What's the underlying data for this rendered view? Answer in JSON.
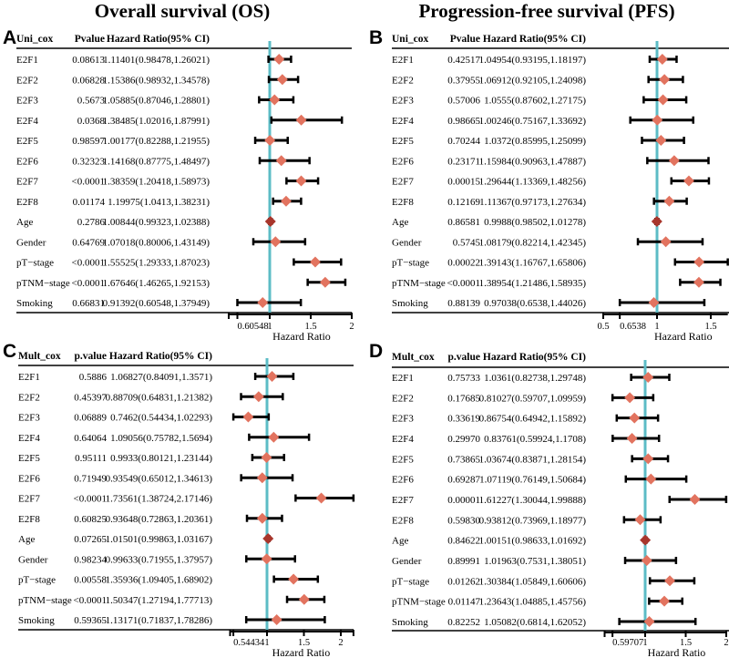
{
  "titles": [
    "Overall survival (OS)",
    "Progression-free survival (PFS)"
  ],
  "colors": {
    "diamond": "#e2735f",
    "diamond_dark": "#a8362c",
    "refline": "#5cbcc6",
    "bar": "#000000"
  },
  "chart_data": [
    {
      "type": "forest",
      "letter": "A",
      "columns": [
        "Uni_cox",
        "Pvalue",
        "Hazard Ratio(95% CI)"
      ],
      "xlabel": "Hazard Ratio",
      "xlim": [
        0.5,
        2.0
      ],
      "ref": 1,
      "ticks": [
        {
          "value": 0.5,
          "label": ""
        },
        {
          "value": 0.60548,
          "label": "0.60548"
        },
        {
          "value": 1,
          "label": "1"
        },
        {
          "value": 1.5,
          "label": "1.5"
        },
        {
          "value": 2,
          "label": "2"
        }
      ],
      "rows": [
        {
          "name": "E2F1",
          "p": "0.08613",
          "text": "1.11401(0.98478,1.26021)",
          "hr": 1.11401,
          "lo": 0.98478,
          "hi": 1.26021
        },
        {
          "name": "E2F2",
          "p": "0.06828",
          "text": "1.15386(0.98932,1.34578)",
          "hr": 1.15386,
          "lo": 0.98932,
          "hi": 1.34578
        },
        {
          "name": "E2F3",
          "p": "0.5673",
          "text": "1.05885(0.87046,1.28801)",
          "hr": 1.05885,
          "lo": 0.87046,
          "hi": 1.28801
        },
        {
          "name": "E2F4",
          "p": "0.0368",
          "text": "1.38485(1.02016,1.87991)",
          "hr": 1.38485,
          "lo": 1.02016,
          "hi": 1.87991
        },
        {
          "name": "E2F5",
          "p": "0.98597",
          "text": "1.00177(0.82288,1.21955)",
          "hr": 1.00177,
          "lo": 0.82288,
          "hi": 1.21955
        },
        {
          "name": "E2F6",
          "p": "0.32323",
          "text": "1.14168(0.87775,1.48497)",
          "hr": 1.14168,
          "lo": 0.87775,
          "hi": 1.48497
        },
        {
          "name": "E2F7",
          "p": "<0.0001",
          "text": "1.38359(1.20418,1.58973)",
          "hr": 1.38359,
          "lo": 1.20418,
          "hi": 1.58973
        },
        {
          "name": "E2F8",
          "p": "0.01174",
          "text": "1.19975(1.0413,1.38231)",
          "hr": 1.19975,
          "lo": 1.0413,
          "hi": 1.38231
        },
        {
          "name": "Age",
          "p": "0.2786",
          "text": "1.00844(0.99323,1.02388)",
          "hr": 1.00844,
          "lo": 0.99323,
          "hi": 1.02388
        },
        {
          "name": "Gender",
          "p": "0.64769",
          "text": "1.07018(0.80006,1.43149)",
          "hr": 1.07018,
          "lo": 0.80006,
          "hi": 1.43149
        },
        {
          "name": "pT−stage",
          "p": "<0.0001",
          "text": "1.55525(1.29333,1.87023)",
          "hr": 1.55525,
          "lo": 1.29333,
          "hi": 1.87023
        },
        {
          "name": "pTNM−stage",
          "p": "<0.0001",
          "text": "1.67646(1.46265,1.92153)",
          "hr": 1.67646,
          "lo": 1.46265,
          "hi": 1.92153
        },
        {
          "name": "Smoking",
          "p": "0.66831",
          "text": "0.91392(0.60548,1.37949)",
          "hr": 0.91392,
          "lo": 0.60548,
          "hi": 1.37949
        }
      ]
    },
    {
      "type": "forest",
      "letter": "B",
      "columns": [
        "Uni_cox",
        "Pvalue",
        "Hazard Ratio(95% CI)"
      ],
      "xlabel": "Hazard Ratio",
      "xlim": [
        0.5,
        1.65806
      ],
      "ref": 1,
      "ticks": [
        {
          "value": 0.5,
          "label": "0.5"
        },
        {
          "value": 0.6538,
          "label": "0.6538"
        },
        {
          "value": 1,
          "label": "1"
        },
        {
          "value": 1.5,
          "label": "1.5"
        }
      ],
      "rows": [
        {
          "name": "E2F1",
          "p": "0.42517",
          "text": "1.04954(0.93195,1.18197)",
          "hr": 1.04954,
          "lo": 0.93195,
          "hi": 1.18197
        },
        {
          "name": "E2F2",
          "p": "0.37955",
          "text": "1.06912(0.92105,1.24098)",
          "hr": 1.06912,
          "lo": 0.92105,
          "hi": 1.24098
        },
        {
          "name": "E2F3",
          "p": "0.57006",
          "text": "1.0555(0.87602,1.27175)",
          "hr": 1.0555,
          "lo": 0.87602,
          "hi": 1.27175
        },
        {
          "name": "E2F4",
          "p": "0.98665",
          "text": "1.00246(0.75167,1.33692)",
          "hr": 1.00246,
          "lo": 0.75167,
          "hi": 1.33692
        },
        {
          "name": "E2F5",
          "p": "0.70244",
          "text": "1.0372(0.85995,1.25099)",
          "hr": 1.0372,
          "lo": 0.85995,
          "hi": 1.25099
        },
        {
          "name": "E2F6",
          "p": "0.23171",
          "text": "1.15984(0.90963,1.47887)",
          "hr": 1.15984,
          "lo": 0.90963,
          "hi": 1.47887
        },
        {
          "name": "E2F7",
          "p": "0.00015",
          "text": "1.29644(1.13369,1.48256)",
          "hr": 1.29644,
          "lo": 1.13369,
          "hi": 1.48256
        },
        {
          "name": "E2F8",
          "p": "0.12169",
          "text": "1.11367(0.97173,1.27634)",
          "hr": 1.11367,
          "lo": 0.97173,
          "hi": 1.27634
        },
        {
          "name": "Age",
          "p": "0.86581",
          "text": "0.9988(0.98502,1.01278)",
          "hr": 0.9988,
          "lo": 0.98502,
          "hi": 1.01278
        },
        {
          "name": "Gender",
          "p": "0.5745",
          "text": "1.08179(0.82214,1.42345)",
          "hr": 1.08179,
          "lo": 0.82214,
          "hi": 1.42345
        },
        {
          "name": "pT−stage",
          "p": "0.00022",
          "text": "1.39143(1.16767,1.65806)",
          "hr": 1.39143,
          "lo": 1.16767,
          "hi": 1.65806
        },
        {
          "name": "pTNM−stage",
          "p": "<0.0001",
          "text": "1.38954(1.21486,1.58935)",
          "hr": 1.38954,
          "lo": 1.21486,
          "hi": 1.58935
        },
        {
          "name": "Smoking",
          "p": "0.88139",
          "text": "0.97038(0.6538,1.44026)",
          "hr": 0.97038,
          "lo": 0.6538,
          "hi": 1.44026
        }
      ]
    },
    {
      "type": "forest",
      "letter": "C",
      "columns": [
        "Mult_cox",
        "p.value",
        "Hazard Ratio(95% CI)"
      ],
      "xlabel": "Hazard Ratio",
      "xlim": [
        0.5,
        2.17146
      ],
      "ref": 1,
      "ticks": [
        {
          "value": 0.5,
          "label": ""
        },
        {
          "value": 0.54434,
          "label": "0.54434"
        },
        {
          "value": 1,
          "label": "1"
        },
        {
          "value": 1.5,
          "label": "1.5"
        },
        {
          "value": 2,
          "label": "2"
        },
        {
          "value": 2.17146,
          "label": ""
        }
      ],
      "rows": [
        {
          "name": "E2F1",
          "p": "0.5886",
          "text": "1.06827(0.84091,1.3571)",
          "hr": 1.06827,
          "lo": 0.84091,
          "hi": 1.3571
        },
        {
          "name": "E2F2",
          "p": "0.45397",
          "text": "0.88709(0.64831,1.21382)",
          "hr": 0.88709,
          "lo": 0.64831,
          "hi": 1.21382
        },
        {
          "name": "E2F3",
          "p": "0.06889",
          "text": "0.7462(0.54434,1.02293)",
          "hr": 0.7462,
          "lo": 0.54434,
          "hi": 1.02293
        },
        {
          "name": "E2F4",
          "p": "0.64064",
          "text": "1.09056(0.75782,1.5694)",
          "hr": 1.09056,
          "lo": 0.75782,
          "hi": 1.5694
        },
        {
          "name": "E2F5",
          "p": "0.95111",
          "text": "0.9933(0.80121,1.23144)",
          "hr": 0.9933,
          "lo": 0.80121,
          "hi": 1.23144
        },
        {
          "name": "E2F6",
          "p": "0.71949",
          "text": "0.93549(0.65012,1.34613)",
          "hr": 0.93549,
          "lo": 0.65012,
          "hi": 1.34613
        },
        {
          "name": "E2F7",
          "p": "<0.0001",
          "text": "1.73561(1.38724,2.17146)",
          "hr": 1.73561,
          "lo": 1.38724,
          "hi": 2.17146
        },
        {
          "name": "E2F8",
          "p": "0.60825",
          "text": "0.93648(0.72863,1.20361)",
          "hr": 0.93648,
          "lo": 0.72863,
          "hi": 1.20361
        },
        {
          "name": "Age",
          "p": "0.07265",
          "text": "1.01501(0.99863,1.03167)",
          "hr": 1.01501,
          "lo": 0.99863,
          "hi": 1.03167
        },
        {
          "name": "Gender",
          "p": "0.98234",
          "text": "0.99633(0.71955,1.37957)",
          "hr": 0.99633,
          "lo": 0.71955,
          "hi": 1.37957
        },
        {
          "name": "pT−stage",
          "p": "0.00558",
          "text": "1.35936(1.09405,1.68902)",
          "hr": 1.35936,
          "lo": 1.09405,
          "hi": 1.68902
        },
        {
          "name": "pTNM−stage",
          "p": "<0.0001",
          "text": "1.50347(1.27194,1.77713)",
          "hr": 1.50347,
          "lo": 1.27194,
          "hi": 1.77713
        },
        {
          "name": "Smoking",
          "p": "0.59365",
          "text": "1.13171(0.71837,1.78286)",
          "hr": 1.13171,
          "lo": 0.71837,
          "hi": 1.78286
        }
      ]
    },
    {
      "type": "forest",
      "letter": "D",
      "columns": [
        "Mult_cox",
        "p.value",
        "Hazard Ratio(95% CI)"
      ],
      "xlabel": "Hazard Ratio",
      "xlim": [
        0.5,
        2.0
      ],
      "ref": 1,
      "ticks": [
        {
          "value": 0.5,
          "label": ""
        },
        {
          "value": 0.59707,
          "label": "0.59707"
        },
        {
          "value": 1,
          "label": "1"
        },
        {
          "value": 1.5,
          "label": "1.5"
        },
        {
          "value": 2,
          "label": "2"
        }
      ],
      "rows": [
        {
          "name": "E2F1",
          "p": "0.75733",
          "text": "1.0361(0.82738,1.29748)",
          "hr": 1.0361,
          "lo": 0.82738,
          "hi": 1.29748
        },
        {
          "name": "E2F2",
          "p": "0.17685",
          "text": "0.81027(0.59707,1.09959)",
          "hr": 0.81027,
          "lo": 0.59707,
          "hi": 1.09959
        },
        {
          "name": "E2F3",
          "p": "0.33619",
          "text": "0.86754(0.64942,1.15892)",
          "hr": 0.86754,
          "lo": 0.64942,
          "hi": 1.15892
        },
        {
          "name": "E2F4",
          "p": "0.29970",
          "text": "0.83761(0.59924,1.1708)",
          "hr": 0.83761,
          "lo": 0.59924,
          "hi": 1.1708
        },
        {
          "name": "E2F5",
          "p": "0.73865",
          "text": "1.03674(0.83871,1.28154)",
          "hr": 1.03674,
          "lo": 0.83871,
          "hi": 1.28154
        },
        {
          "name": "E2F6",
          "p": "0.69287",
          "text": "1.07119(0.76149,1.50684)",
          "hr": 1.07119,
          "lo": 0.76149,
          "hi": 1.50684
        },
        {
          "name": "E2F7",
          "p": "0.00001",
          "text": "1.61227(1.30044,1.99888)",
          "hr": 1.61227,
          "lo": 1.30044,
          "hi": 1.99888
        },
        {
          "name": "E2F8",
          "p": "0.59830",
          "text": "0.93812(0.73969,1.18977)",
          "hr": 0.93812,
          "lo": 0.73969,
          "hi": 1.18977
        },
        {
          "name": "Age",
          "p": "0.84622",
          "text": "1.00151(0.98633,1.01692)",
          "hr": 1.00151,
          "lo": 0.98633,
          "hi": 1.01692
        },
        {
          "name": "Gender",
          "p": "0.89991",
          "text": "1.01963(0.7531,1.38051)",
          "hr": 1.01963,
          "lo": 0.7531,
          "hi": 1.38051
        },
        {
          "name": "pT−stage",
          "p": "0.01262",
          "text": "1.30384(1.05849,1.60606)",
          "hr": 1.30384,
          "lo": 1.05849,
          "hi": 1.60606
        },
        {
          "name": "pTNM−stage",
          "p": "0.01147",
          "text": "1.23643(1.04885,1.45756)",
          "hr": 1.23643,
          "lo": 1.04885,
          "hi": 1.45756
        },
        {
          "name": "Smoking",
          "p": "0.82252",
          "text": "1.05082(0.6814,1.62052)",
          "hr": 1.05082,
          "lo": 0.6814,
          "hi": 1.62052
        }
      ]
    }
  ]
}
